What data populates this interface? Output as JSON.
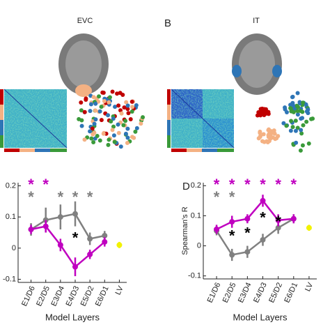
{
  "brain_panels": [
    {
      "title": "EVC"
    },
    {
      "title": "IT",
      "panel_label": "B"
    }
  ],
  "chart_data": [
    {
      "type": "line",
      "xlabel": "Model Layers",
      "categories": [
        "E1/D6",
        "E2/D5",
        "E3/D4",
        "E4/D3",
        "E5/D2",
        "E6/D1",
        "LV"
      ],
      "ylim": [
        -0.11,
        0.21
      ],
      "yticks": [
        -0.1,
        0,
        0.1,
        0.2
      ],
      "series": [
        {
          "color": "#808080",
          "values": [
            0.06,
            0.09,
            0.1,
            0.11,
            0.03,
            0.04,
            null
          ],
          "errors": [
            0.02,
            0.04,
            0.04,
            0.04,
            0.02,
            0.015,
            null
          ]
        },
        {
          "color": "#c000c0",
          "values": [
            0.06,
            0.07,
            0.01,
            -0.06,
            -0.02,
            0.02,
            null
          ],
          "errors": [
            0.015,
            0.02,
            0.02,
            0.03,
            0.015,
            0.015,
            null
          ]
        },
        {
          "color": "#f2f200",
          "values": [
            null,
            null,
            null,
            null,
            null,
            null,
            0.01
          ],
          "errors": [
            null,
            null,
            null,
            null,
            null,
            null,
            0.01
          ]
        }
      ],
      "annotations": [
        {
          "text": "*",
          "color": "#c000c0",
          "at": [
            "E1/D6",
            "E2/D5"
          ]
        },
        {
          "text": "*",
          "color": "#808080",
          "at": [
            "E1/D6",
            "E3/D4",
            "E4/D3",
            "E5/D2"
          ]
        },
        {
          "text": "*",
          "color": "#000000",
          "at": [
            "E4/D3"
          ]
        }
      ]
    },
    {
      "type": "line",
      "panel_label": "D",
      "ylabel": "Spearman's R",
      "xlabel": "Model Layers",
      "categories": [
        "E1/D6",
        "E2/D5",
        "E3/D4",
        "E4/D3",
        "E5/D2",
        "E6/D1",
        "LV"
      ],
      "ylim": [
        -0.11,
        0.21
      ],
      "yticks": [
        -0.1,
        0,
        0.1,
        0.2
      ],
      "series": [
        {
          "color": "#808080",
          "values": [
            0.05,
            -0.03,
            -0.02,
            0.02,
            0.06,
            0.09,
            null
          ],
          "errors": [
            0.015,
            0.02,
            0.02,
            0.02,
            0.02,
            0.015,
            null
          ]
        },
        {
          "color": "#c000c0",
          "values": [
            0.055,
            0.08,
            0.09,
            0.15,
            0.085,
            0.09,
            null
          ],
          "errors": [
            0.015,
            0.02,
            0.015,
            0.02,
            0.02,
            0.015,
            null
          ]
        },
        {
          "color": "#f2f200",
          "values": [
            null,
            null,
            null,
            null,
            null,
            null,
            0.06
          ],
          "errors": [
            null,
            null,
            null,
            null,
            null,
            null,
            0.01
          ]
        }
      ],
      "annotations": [
        {
          "text": "*",
          "color": "#c000c0",
          "at": [
            "E1/D6",
            "E2/D5",
            "E3/D4",
            "E4/D3",
            "E5/D2",
            "E6/D1"
          ]
        },
        {
          "text": "*",
          "color": "#808080",
          "at": [
            "E1/D6",
            "E2/D5"
          ]
        },
        {
          "text": "*",
          "color": "#000000",
          "at": [
            "E2/D5",
            "E3/D4",
            "E4/D3",
            "E5/D2"
          ]
        }
      ]
    }
  ]
}
